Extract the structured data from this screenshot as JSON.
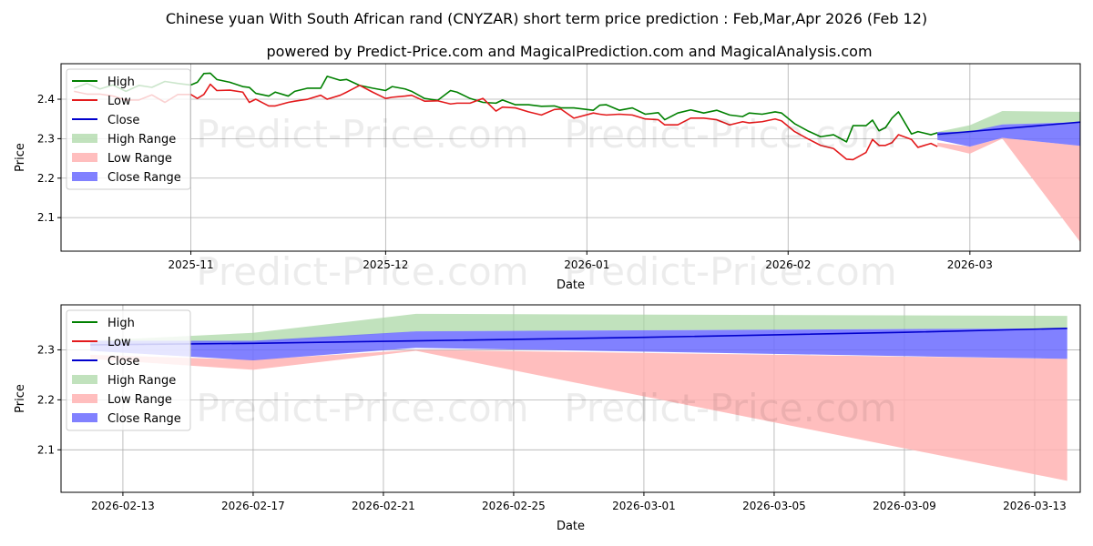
{
  "title": "Chinese yuan With South African rand (CNYZAR) short term price prediction : Feb,Mar,Apr 2026 (Feb 12)",
  "subtitle": "powered by Predict-Price.com and MagicalPrediction.com and MagicalAnalysis.com",
  "watermark": "Predict-Price.com",
  "colors": {
    "high": "#008000",
    "low": "#e31a1c",
    "close": "#0000cd",
    "high_range": "#a6d5a1",
    "low_range": "#ffb3b3",
    "close_range": "#6b6bff",
    "grid": "#b0b0b0"
  },
  "chart_data": [
    {
      "type": "line",
      "name": "history-and-forecast",
      "xlabel": "Date",
      "ylabel": "Price",
      "xlim": [
        "2025-10-12",
        "2026-03-18"
      ],
      "ylim": [
        2.015,
        2.49
      ],
      "x_ticks": [
        {
          "date": "2025-11-01",
          "label": "2025-11"
        },
        {
          "date": "2025-12-01",
          "label": "2025-12"
        },
        {
          "date": "2026-01-01",
          "label": "2026-01"
        },
        {
          "date": "2026-02-01",
          "label": "2026-02"
        },
        {
          "date": "2026-03-01",
          "label": "2026-03"
        }
      ],
      "y_ticks": [
        2.1,
        2.2,
        2.3,
        2.4
      ],
      "legend": [
        "High",
        "Low",
        "Close",
        "High Range",
        "Low Range",
        "Close Range"
      ],
      "legend_position": "upper-left",
      "series": [
        {
          "name": "High",
          "points": [
            [
              "2025-10-14",
              2.428
            ],
            [
              "2025-10-16",
              2.44
            ],
            [
              "2025-10-18",
              2.426
            ],
            [
              "2025-10-20",
              2.436
            ],
            [
              "2025-10-22",
              2.42
            ],
            [
              "2025-10-24",
              2.435
            ],
            [
              "2025-10-26",
              2.43
            ],
            [
              "2025-10-28",
              2.445
            ],
            [
              "2025-10-30",
              2.44
            ],
            [
              "2025-11-01",
              2.436
            ],
            [
              "2025-11-02",
              2.443
            ],
            [
              "2025-11-03",
              2.465
            ],
            [
              "2025-11-04",
              2.466
            ],
            [
              "2025-11-05",
              2.45
            ],
            [
              "2025-11-07",
              2.443
            ],
            [
              "2025-11-09",
              2.432
            ],
            [
              "2025-11-10",
              2.43
            ],
            [
              "2025-11-11",
              2.415
            ],
            [
              "2025-11-13",
              2.408
            ],
            [
              "2025-11-14",
              2.418
            ],
            [
              "2025-11-16",
              2.408
            ],
            [
              "2025-11-17",
              2.42
            ],
            [
              "2025-11-19",
              2.428
            ],
            [
              "2025-11-21",
              2.428
            ],
            [
              "2025-11-22",
              2.458
            ],
            [
              "2025-11-24",
              2.448
            ],
            [
              "2025-11-25",
              2.45
            ],
            [
              "2025-11-27",
              2.435
            ],
            [
              "2025-11-29",
              2.428
            ],
            [
              "2025-12-01",
              2.422
            ],
            [
              "2025-12-02",
              2.432
            ],
            [
              "2025-12-04",
              2.426
            ],
            [
              "2025-12-05",
              2.42
            ],
            [
              "2025-12-07",
              2.402
            ],
            [
              "2025-12-09",
              2.397
            ],
            [
              "2025-12-11",
              2.422
            ],
            [
              "2025-12-12",
              2.418
            ],
            [
              "2025-12-14",
              2.402
            ],
            [
              "2025-12-16",
              2.392
            ],
            [
              "2025-12-18",
              2.39
            ],
            [
              "2025-12-19",
              2.398
            ],
            [
              "2025-12-21",
              2.386
            ],
            [
              "2025-12-23",
              2.386
            ],
            [
              "2025-12-25",
              2.382
            ],
            [
              "2025-12-27",
              2.383
            ],
            [
              "2025-12-28",
              2.378
            ],
            [
              "2025-12-30",
              2.378
            ],
            [
              "2026-01-02",
              2.372
            ],
            [
              "2026-01-03",
              2.385
            ],
            [
              "2026-01-04",
              2.386
            ],
            [
              "2026-01-06",
              2.372
            ],
            [
              "2026-01-08",
              2.378
            ],
            [
              "2026-01-10",
              2.362
            ],
            [
              "2026-01-12",
              2.366
            ],
            [
              "2026-01-13",
              2.348
            ],
            [
              "2026-01-15",
              2.365
            ],
            [
              "2026-01-17",
              2.373
            ],
            [
              "2026-01-19",
              2.365
            ],
            [
              "2026-01-21",
              2.372
            ],
            [
              "2026-01-23",
              2.36
            ],
            [
              "2026-01-25",
              2.356
            ],
            [
              "2026-01-26",
              2.365
            ],
            [
              "2026-01-28",
              2.362
            ],
            [
              "2026-01-30",
              2.368
            ],
            [
              "2026-01-31",
              2.365
            ],
            [
              "2026-02-02",
              2.338
            ],
            [
              "2026-02-04",
              2.32
            ],
            [
              "2026-02-06",
              2.305
            ],
            [
              "2026-02-08",
              2.31
            ],
            [
              "2026-02-10",
              2.292
            ],
            [
              "2026-02-11",
              2.333
            ],
            [
              "2026-02-13",
              2.333
            ],
            [
              "2026-02-14",
              2.347
            ],
            [
              "2026-02-15",
              2.32
            ],
            [
              "2026-02-16",
              2.328
            ],
            [
              "2026-02-17",
              2.352
            ],
            [
              "2026-02-18",
              2.368
            ],
            [
              "2026-02-20",
              2.312
            ],
            [
              "2026-02-21",
              2.318
            ],
            [
              "2026-02-23",
              2.31
            ],
            [
              "2026-02-24",
              2.315
            ]
          ]
        },
        {
          "name": "Low",
          "points": [
            [
              "2025-10-14",
              2.42
            ],
            [
              "2025-10-16",
              2.413
            ],
            [
              "2025-10-18",
              2.413
            ],
            [
              "2025-10-20",
              2.408
            ],
            [
              "2025-10-22",
              2.398
            ],
            [
              "2025-10-24",
              2.398
            ],
            [
              "2025-10-26",
              2.411
            ],
            [
              "2025-10-28",
              2.392
            ],
            [
              "2025-10-30",
              2.412
            ],
            [
              "2025-11-01",
              2.412
            ],
            [
              "2025-11-02",
              2.402
            ],
            [
              "2025-11-03",
              2.412
            ],
            [
              "2025-11-04",
              2.438
            ],
            [
              "2025-11-05",
              2.422
            ],
            [
              "2025-11-07",
              2.423
            ],
            [
              "2025-11-09",
              2.418
            ],
            [
              "2025-11-10",
              2.392
            ],
            [
              "2025-11-11",
              2.4
            ],
            [
              "2025-11-13",
              2.383
            ],
            [
              "2025-11-14",
              2.383
            ],
            [
              "2025-11-16",
              2.392
            ],
            [
              "2025-11-17",
              2.395
            ],
            [
              "2025-11-19",
              2.4
            ],
            [
              "2025-11-21",
              2.41
            ],
            [
              "2025-11-22",
              2.4
            ],
            [
              "2025-11-24",
              2.41
            ],
            [
              "2025-11-25",
              2.418
            ],
            [
              "2025-11-27",
              2.435
            ],
            [
              "2025-11-29",
              2.418
            ],
            [
              "2025-12-01",
              2.402
            ],
            [
              "2025-12-02",
              2.405
            ],
            [
              "2025-12-04",
              2.408
            ],
            [
              "2025-12-05",
              2.41
            ],
            [
              "2025-12-07",
              2.395
            ],
            [
              "2025-12-09",
              2.396
            ],
            [
              "2025-12-11",
              2.388
            ],
            [
              "2025-12-12",
              2.39
            ],
            [
              "2025-12-14",
              2.39
            ],
            [
              "2025-12-16",
              2.402
            ],
            [
              "2025-12-18",
              2.37
            ],
            [
              "2025-12-19",
              2.38
            ],
            [
              "2025-12-21",
              2.378
            ],
            [
              "2025-12-23",
              2.368
            ],
            [
              "2025-12-25",
              2.36
            ],
            [
              "2025-12-27",
              2.374
            ],
            [
              "2025-12-28",
              2.375
            ],
            [
              "2025-12-30",
              2.352
            ],
            [
              "2026-01-02",
              2.365
            ],
            [
              "2026-01-03",
              2.362
            ],
            [
              "2026-01-04",
              2.36
            ],
            [
              "2026-01-06",
              2.362
            ],
            [
              "2026-01-08",
              2.36
            ],
            [
              "2026-01-10",
              2.35
            ],
            [
              "2026-01-12",
              2.348
            ],
            [
              "2026-01-13",
              2.335
            ],
            [
              "2026-01-15",
              2.335
            ],
            [
              "2026-01-17",
              2.352
            ],
            [
              "2026-01-19",
              2.352
            ],
            [
              "2026-01-21",
              2.348
            ],
            [
              "2026-01-23",
              2.335
            ],
            [
              "2026-01-25",
              2.343
            ],
            [
              "2026-01-26",
              2.34
            ],
            [
              "2026-01-28",
              2.343
            ],
            [
              "2026-01-30",
              2.35
            ],
            [
              "2026-01-31",
              2.345
            ],
            [
              "2026-02-02",
              2.318
            ],
            [
              "2026-02-04",
              2.3
            ],
            [
              "2026-02-06",
              2.283
            ],
            [
              "2026-02-08",
              2.275
            ],
            [
              "2026-02-10",
              2.248
            ],
            [
              "2026-02-11",
              2.247
            ],
            [
              "2026-02-13",
              2.265
            ],
            [
              "2026-02-14",
              2.298
            ],
            [
              "2026-02-15",
              2.283
            ],
            [
              "2026-02-16",
              2.283
            ],
            [
              "2026-02-17",
              2.29
            ],
            [
              "2026-02-18",
              2.31
            ],
            [
              "2026-02-20",
              2.298
            ],
            [
              "2026-02-21",
              2.278
            ],
            [
              "2026-02-23",
              2.288
            ],
            [
              "2026-02-24",
              2.28
            ]
          ]
        },
        {
          "name": "Close",
          "points": [
            [
              "2026-02-24",
              2.311
            ],
            [
              "2026-03-18",
              2.342
            ]
          ]
        }
      ],
      "ranges": [
        {
          "name": "High Range",
          "x": [
            "2026-02-24",
            "2026-03-01",
            "2026-03-06",
            "2026-03-18"
          ],
          "upper": [
            2.317,
            2.334,
            2.37,
            2.368
          ],
          "lower": [
            2.305,
            2.312,
            2.336,
            2.342
          ]
        },
        {
          "name": "Low Range",
          "x": [
            "2026-02-24",
            "2026-03-01",
            "2026-03-06",
            "2026-03-18"
          ],
          "upper": [
            2.29,
            2.28,
            2.302,
            2.282
          ],
          "lower": [
            2.281,
            2.262,
            2.3,
            2.038
          ]
        },
        {
          "name": "Close Range",
          "x": [
            "2026-02-24",
            "2026-03-01",
            "2026-03-06",
            "2026-03-18"
          ],
          "upper": [
            2.317,
            2.318,
            2.336,
            2.342
          ],
          "lower": [
            2.297,
            2.28,
            2.302,
            2.282
          ]
        }
      ]
    },
    {
      "type": "line",
      "name": "forecast-zoom",
      "xlabel": "Date",
      "ylabel": "Price",
      "xlim": [
        "2026-02-11.1",
        "2026-03-14.4"
      ],
      "ylim": [
        2.015,
        2.39
      ],
      "x_ticks": [
        {
          "date": "2026-02-13",
          "label": "2026-02-13"
        },
        {
          "date": "2026-02-17",
          "label": "2026-02-17"
        },
        {
          "date": "2026-02-21",
          "label": "2026-02-21"
        },
        {
          "date": "2026-02-25",
          "label": "2026-02-25"
        },
        {
          "date": "2026-03-01",
          "label": "2026-03-01"
        },
        {
          "date": "2026-03-05",
          "label": "2026-03-05"
        },
        {
          "date": "2026-03-09",
          "label": "2026-03-09"
        },
        {
          "date": "2026-03-13",
          "label": "2026-03-13"
        }
      ],
      "y_ticks": [
        2.1,
        2.2,
        2.3
      ],
      "legend": [
        "High",
        "Low",
        "Close",
        "High Range",
        "Low Range",
        "Close Range"
      ],
      "legend_position": "upper-left",
      "series": [
        {
          "name": "Close",
          "points": [
            [
              "2026-02-12",
              2.31
            ],
            [
              "2026-02-17",
              2.313
            ],
            [
              "2026-02-22",
              2.318
            ],
            [
              "2026-03-01",
              2.325
            ],
            [
              "2026-03-09",
              2.335
            ],
            [
              "2026-03-14",
              2.343
            ]
          ]
        }
      ],
      "ranges": [
        {
          "name": "High Range",
          "x": [
            "2026-02-12",
            "2026-02-17",
            "2026-02-22",
            "2026-03-14"
          ],
          "upper": [
            2.318,
            2.334,
            2.372,
            2.368
          ],
          "lower": [
            2.311,
            2.313,
            2.337,
            2.343
          ]
        },
        {
          "name": "Low Range",
          "x": [
            "2026-02-12",
            "2026-02-17",
            "2026-02-22",
            "2026-03-14"
          ],
          "upper": [
            2.29,
            2.28,
            2.3,
            2.282
          ],
          "lower": [
            2.282,
            2.26,
            2.298,
            2.038
          ]
        },
        {
          "name": "Close Range",
          "x": [
            "2026-02-12",
            "2026-02-17",
            "2026-02-22",
            "2026-03-14"
          ],
          "upper": [
            2.318,
            2.318,
            2.337,
            2.343
          ],
          "lower": [
            2.298,
            2.279,
            2.304,
            2.282
          ]
        }
      ]
    }
  ]
}
